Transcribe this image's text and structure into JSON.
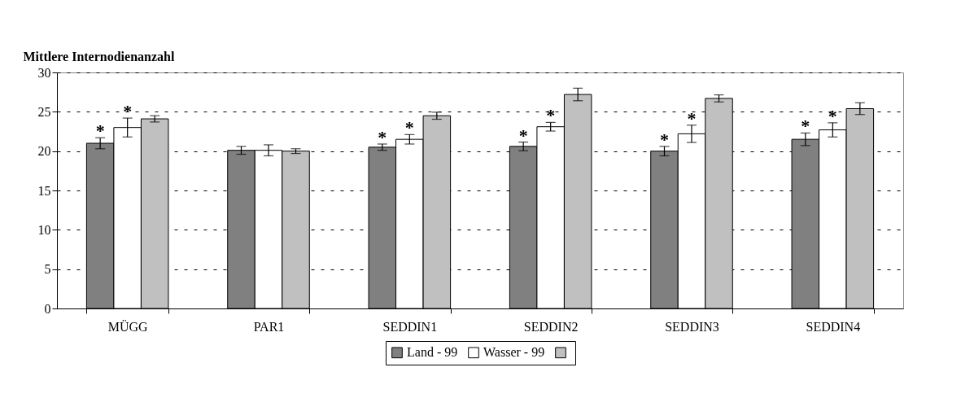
{
  "chart_data": {
    "type": "bar",
    "ylabel": "Mittlere Internodienanzahl",
    "categories": [
      "MÜGG",
      "PAR1",
      "SEDDIN1",
      "SEDDIN2",
      "SEDDIN3",
      "SEDDIN4"
    ],
    "series": [
      {
        "name": "Land - 99",
        "color": "#808080",
        "values": [
          21.0,
          20.1,
          20.5,
          20.6,
          20.0,
          21.5
        ],
        "errors": [
          0.7,
          0.5,
          0.4,
          0.55,
          0.6,
          0.8
        ]
      },
      {
        "name": "Wasser - 99",
        "color": "#ffffff",
        "values": [
          23.0,
          20.1,
          21.5,
          23.1,
          22.2,
          22.7
        ],
        "errors": [
          1.2,
          0.7,
          0.6,
          0.55,
          1.1,
          0.9
        ]
      },
      {
        "color": "#c0c0c0",
        "values": [
          24.1,
          20.0,
          24.5,
          27.2,
          26.7,
          25.4
        ],
        "errors": [
          0.4,
          0.3,
          0.45,
          0.8,
          0.45,
          0.75
        ]
      }
    ],
    "annotations": [
      "*",
      "*",
      "*",
      "*",
      "*",
      "*",
      "*",
      "*",
      "*",
      "*"
    ],
    "ylim": [
      0,
      30
    ],
    "yticks": [
      0,
      5,
      10,
      15,
      20,
      25,
      30
    ],
    "grid": "y",
    "legend": "bottom"
  }
}
